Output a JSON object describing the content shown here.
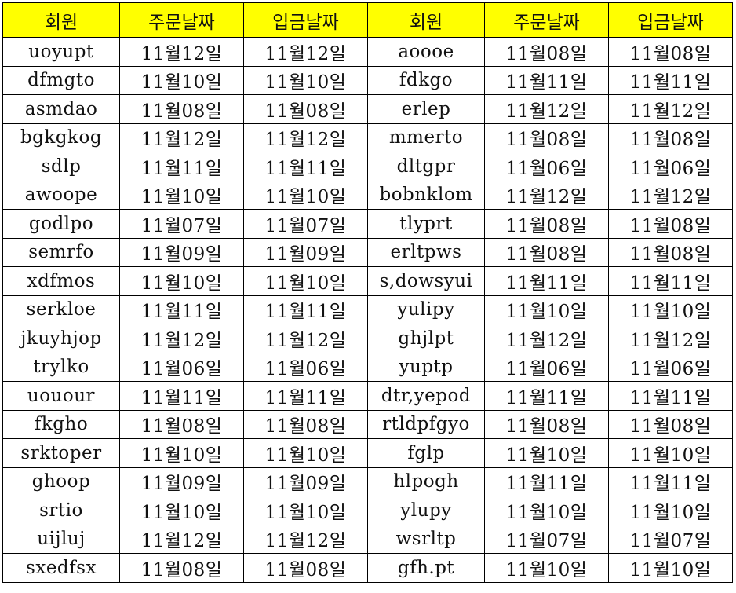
{
  "header": {
    "accent": "#ffff00",
    "columns": [
      "회원",
      "주문날짜",
      "입금날짜",
      "회원",
      "주문날짜",
      "입금날짜"
    ]
  },
  "rows": [
    [
      "uoyupt",
      "11월12일",
      "11월12일",
      "aoooe",
      "11월08일",
      "11월08일"
    ],
    [
      "dfmgto",
      "11월10일",
      "11월10일",
      "fdkgo",
      "11월11일",
      "11월11일"
    ],
    [
      "asmdao",
      "11월08일",
      "11월08일",
      "erlep",
      "11월12일",
      "11월12일"
    ],
    [
      "bgkgkog",
      "11월12일",
      "11월12일",
      "mmerto",
      "11월08일",
      "11월08일"
    ],
    [
      "sdlp",
      "11월11일",
      "11월11일",
      "dltgpr",
      "11월06일",
      "11월06일"
    ],
    [
      "awoope",
      "11월10일",
      "11월10일",
      "bobnklom",
      "11월12일",
      "11월12일"
    ],
    [
      "godlpo",
      "11월07일",
      "11월07일",
      "tlyprt",
      "11월08일",
      "11월08일"
    ],
    [
      "semrfo",
      "11월09일",
      "11월09일",
      "erltpws",
      "11월08일",
      "11월08일"
    ],
    [
      "xdfmos",
      "11월10일",
      "11월10일",
      "s,dowsyui",
      "11월11일",
      "11월11일"
    ],
    [
      "serkloe",
      "11월11일",
      "11월11일",
      "yulipy",
      "11월10일",
      "11월10일"
    ],
    [
      "jkuyhjop",
      "11월12일",
      "11월12일",
      "ghjlpt",
      "11월12일",
      "11월12일"
    ],
    [
      "trylko",
      "11월06일",
      "11월06일",
      "yuptp",
      "11월06일",
      "11월06일"
    ],
    [
      "uouour",
      "11월11일",
      "11월11일",
      "dtr,yepod",
      "11월11일",
      "11월11일"
    ],
    [
      "fkgho",
      "11월08일",
      "11월08일",
      "rtldpfgyo",
      "11월08일",
      "11월08일"
    ],
    [
      "srktoper",
      "11월10일",
      "11월10일",
      "fglp",
      "11월10일",
      "11월10일"
    ],
    [
      "ghoop",
      "11월09일",
      "11월09일",
      "hlpogh",
      "11월11일",
      "11월11일"
    ],
    [
      "srtio",
      "11월10일",
      "11월10일",
      "ylupy",
      "11월10일",
      "11월10일"
    ],
    [
      "uijluj",
      "11월12일",
      "11월12일",
      "wsrltp",
      "11월07일",
      "11월07일"
    ],
    [
      "sxedfsx",
      "11월08일",
      "11월08일",
      "gfh.pt",
      "11월10일",
      "11월10일"
    ]
  ]
}
